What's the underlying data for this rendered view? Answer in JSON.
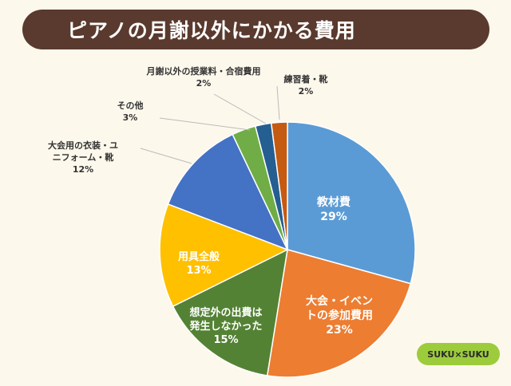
{
  "header": {
    "title": "ピアノの月謝以外にかかる費用"
  },
  "logo": {
    "text": "SUKU×SUKU"
  },
  "colors": {
    "background": "#fdf8ec",
    "title_bar": "#5a3a2e",
    "leader_line": "#bbbbbb"
  },
  "chart_data": {
    "type": "pie",
    "title": "ピアノの月謝以外にかかる費用",
    "start": "12 o'clock, clockwise",
    "slices": [
      {
        "label": "教材費",
        "value": 29,
        "value_label": "29%",
        "color": "#5b9bd5",
        "label_color": "#ffffff",
        "label_placement": "inside"
      },
      {
        "label": "大会・イベントの参加費用",
        "value": 23,
        "value_label": "23%",
        "color": "#ed7d31",
        "label_color": "#ffffff",
        "label_placement": "inside"
      },
      {
        "label": "想定外の出費は発生しなかった",
        "value": 15,
        "value_label": "15%",
        "color": "#548235",
        "label_color": "#ffffff",
        "label_placement": "inside"
      },
      {
        "label": "用具全般",
        "value": 13,
        "value_label": "13%",
        "color": "#ffc000",
        "label_color": "#ffffff",
        "label_placement": "inside"
      },
      {
        "label": "大会用の衣装・ユニフォーム・靴",
        "value": 12,
        "value_label": "12%",
        "color": "#4472c4",
        "label_color": "#333333",
        "label_placement": "outside"
      },
      {
        "label": "その他",
        "value": 3,
        "value_label": "3%",
        "color": "#70ad47",
        "label_color": "#333333",
        "label_placement": "outside"
      },
      {
        "label": "月謝以外の授業料・合宿費用",
        "value": 2,
        "value_label": "2%",
        "color": "#255e91",
        "label_color": "#333333",
        "label_placement": "outside"
      },
      {
        "label": "練習着・靴",
        "value": 2,
        "value_label": "2%",
        "color": "#c55a11",
        "label_color": "#333333",
        "label_placement": "outside"
      }
    ]
  }
}
